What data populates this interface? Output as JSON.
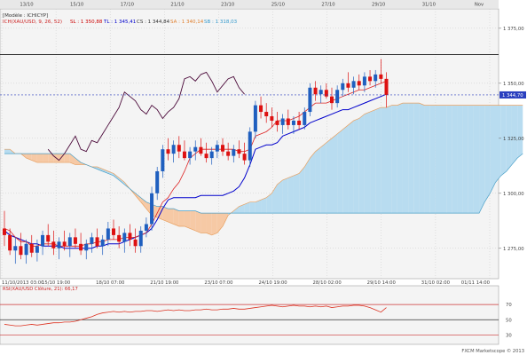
{
  "model_label": "[Modèle : ICHICYP]",
  "indicator_legend": {
    "ichimoku_label": "ICH(XAU/USD, 9, 26, 52)",
    "items": [
      {
        "label": "SL : 1 350,88",
        "color": "#cc0000"
      },
      {
        "label": "TL : 1 345,41",
        "color": "#0000cc"
      },
      {
        "label": "CS : 1 344,84",
        "color": "#333333"
      },
      {
        "label": "SA : 1 340,14",
        "color": "#e08030"
      },
      {
        "label": "SB : 1 318,03",
        "color": "#3399cc"
      }
    ]
  },
  "rsi_label": "RSI(XAU/USD Clôture, 21): 66,17",
  "watermark": "FXCM Marketscope © 2013",
  "last_price_label": "1 344,70",
  "colors": {
    "bull": "#1f5fbf",
    "bear": "#dd1111",
    "tenkan": "#dd2222",
    "kijun": "#0000cc",
    "chikou": "#4b0a3a",
    "kumo_bull": "#b8dcf0",
    "kumo_bear": "#f6c9a5",
    "grid": "#c8c8c8",
    "background": "#f4f4f4",
    "rsi": "#dd3322"
  },
  "chart_data": [
    {
      "type": "candlestick",
      "instrument": "XAU/USD",
      "ylim": [
        1262,
        1383
      ],
      "y_ticks": [
        1275,
        1300,
        1325,
        1350,
        1375
      ],
      "y_tick_labels": [
        "1 275,00",
        "1 300,00",
        "1 325,00",
        "1 350,00",
        "1 375,00"
      ],
      "x_time_labels": [
        "11/10/2013 03:00",
        "15/10 19:00",
        "18/10 07:00",
        "21/10 19:00",
        "23/10 07:00",
        "24/10 19:00",
        "28/10 02:00",
        "29/10 14:00",
        "31/10 02:00",
        "01/11 14:00"
      ],
      "x_date_labels": [
        "13/10",
        "15/10",
        "17/10",
        "21/10",
        "23/10",
        "25/10",
        "27/10",
        "29/10",
        "31/10",
        "Nov"
      ],
      "horizontal_line": 1363,
      "last_price": 1344.7,
      "candles": [
        {
          "o": 1284,
          "h": 1292,
          "l": 1276,
          "c": 1281
        },
        {
          "o": 1281,
          "h": 1284,
          "l": 1272,
          "c": 1274
        },
        {
          "o": 1274,
          "h": 1280,
          "l": 1268,
          "c": 1276
        },
        {
          "o": 1276,
          "h": 1282,
          "l": 1270,
          "c": 1272
        },
        {
          "o": 1272,
          "h": 1279,
          "l": 1268,
          "c": 1277
        },
        {
          "o": 1277,
          "h": 1281,
          "l": 1271,
          "c": 1273
        },
        {
          "o": 1273,
          "h": 1279,
          "l": 1269,
          "c": 1276
        },
        {
          "o": 1276,
          "h": 1283,
          "l": 1272,
          "c": 1281
        },
        {
          "o": 1281,
          "h": 1286,
          "l": 1276,
          "c": 1278
        },
        {
          "o": 1278,
          "h": 1283,
          "l": 1272,
          "c": 1275
        },
        {
          "o": 1275,
          "h": 1280,
          "l": 1270,
          "c": 1278
        },
        {
          "o": 1278,
          "h": 1283,
          "l": 1274,
          "c": 1276
        },
        {
          "o": 1276,
          "h": 1282,
          "l": 1271,
          "c": 1280
        },
        {
          "o": 1280,
          "h": 1284,
          "l": 1275,
          "c": 1277
        },
        {
          "o": 1277,
          "h": 1282,
          "l": 1272,
          "c": 1274
        },
        {
          "o": 1274,
          "h": 1279,
          "l": 1270,
          "c": 1277
        },
        {
          "o": 1277,
          "h": 1282,
          "l": 1273,
          "c": 1280
        },
        {
          "o": 1280,
          "h": 1284,
          "l": 1275,
          "c": 1276
        },
        {
          "o": 1276,
          "h": 1281,
          "l": 1272,
          "c": 1279
        },
        {
          "o": 1279,
          "h": 1287,
          "l": 1276,
          "c": 1284
        },
        {
          "o": 1284,
          "h": 1288,
          "l": 1279,
          "c": 1281
        },
        {
          "o": 1281,
          "h": 1285,
          "l": 1275,
          "c": 1278
        },
        {
          "o": 1278,
          "h": 1284,
          "l": 1273,
          "c": 1282
        },
        {
          "o": 1282,
          "h": 1286,
          "l": 1276,
          "c": 1279
        },
        {
          "o": 1279,
          "h": 1284,
          "l": 1273,
          "c": 1276
        },
        {
          "o": 1276,
          "h": 1285,
          "l": 1273,
          "c": 1283
        },
        {
          "o": 1283,
          "h": 1289,
          "l": 1280,
          "c": 1286
        },
        {
          "o": 1286,
          "h": 1303,
          "l": 1283,
          "c": 1300
        },
        {
          "o": 1300,
          "h": 1312,
          "l": 1297,
          "c": 1310
        },
        {
          "o": 1310,
          "h": 1322,
          "l": 1307,
          "c": 1320
        },
        {
          "o": 1320,
          "h": 1325,
          "l": 1315,
          "c": 1318
        },
        {
          "o": 1318,
          "h": 1324,
          "l": 1314,
          "c": 1322
        },
        {
          "o": 1322,
          "h": 1326,
          "l": 1316,
          "c": 1319
        },
        {
          "o": 1319,
          "h": 1324,
          "l": 1315,
          "c": 1316
        },
        {
          "o": 1316,
          "h": 1321,
          "l": 1313,
          "c": 1319
        },
        {
          "o": 1319,
          "h": 1324,
          "l": 1315,
          "c": 1321
        },
        {
          "o": 1321,
          "h": 1325,
          "l": 1317,
          "c": 1318
        },
        {
          "o": 1318,
          "h": 1323,
          "l": 1314,
          "c": 1316
        },
        {
          "o": 1316,
          "h": 1321,
          "l": 1313,
          "c": 1319
        },
        {
          "o": 1319,
          "h": 1324,
          "l": 1316,
          "c": 1322
        },
        {
          "o": 1322,
          "h": 1325,
          "l": 1317,
          "c": 1319
        },
        {
          "o": 1319,
          "h": 1323,
          "l": 1315,
          "c": 1317
        },
        {
          "o": 1317,
          "h": 1322,
          "l": 1314,
          "c": 1320
        },
        {
          "o": 1320,
          "h": 1324,
          "l": 1316,
          "c": 1318
        },
        {
          "o": 1318,
          "h": 1323,
          "l": 1313,
          "c": 1315
        },
        {
          "o": 1315,
          "h": 1330,
          "l": 1312,
          "c": 1328
        },
        {
          "o": 1328,
          "h": 1342,
          "l": 1325,
          "c": 1340
        },
        {
          "o": 1340,
          "h": 1344,
          "l": 1334,
          "c": 1337
        },
        {
          "o": 1337,
          "h": 1341,
          "l": 1332,
          "c": 1335
        },
        {
          "o": 1335,
          "h": 1339,
          "l": 1330,
          "c": 1333
        },
        {
          "o": 1333,
          "h": 1337,
          "l": 1328,
          "c": 1331
        },
        {
          "o": 1331,
          "h": 1336,
          "l": 1327,
          "c": 1334
        },
        {
          "o": 1334,
          "h": 1338,
          "l": 1329,
          "c": 1331
        },
        {
          "o": 1331,
          "h": 1335,
          "l": 1327,
          "c": 1333
        },
        {
          "o": 1333,
          "h": 1337,
          "l": 1329,
          "c": 1331
        },
        {
          "o": 1331,
          "h": 1339,
          "l": 1329,
          "c": 1337
        },
        {
          "o": 1337,
          "h": 1350,
          "l": 1335,
          "c": 1348
        },
        {
          "o": 1348,
          "h": 1351,
          "l": 1342,
          "c": 1345
        },
        {
          "o": 1345,
          "h": 1349,
          "l": 1341,
          "c": 1347
        },
        {
          "o": 1347,
          "h": 1350,
          "l": 1343,
          "c": 1344
        },
        {
          "o": 1344,
          "h": 1348,
          "l": 1338,
          "c": 1341
        },
        {
          "o": 1341,
          "h": 1349,
          "l": 1339,
          "c": 1347
        },
        {
          "o": 1347,
          "h": 1352,
          "l": 1344,
          "c": 1350
        },
        {
          "o": 1350,
          "h": 1355,
          "l": 1346,
          "c": 1348
        },
        {
          "o": 1348,
          "h": 1353,
          "l": 1345,
          "c": 1351
        },
        {
          "o": 1351,
          "h": 1354,
          "l": 1347,
          "c": 1349
        },
        {
          "o": 1349,
          "h": 1355,
          "l": 1346,
          "c": 1353
        },
        {
          "o": 1353,
          "h": 1356,
          "l": 1349,
          "c": 1351
        },
        {
          "o": 1351,
          "h": 1356,
          "l": 1348,
          "c": 1354
        },
        {
          "o": 1354,
          "h": 1361,
          "l": 1350,
          "c": 1352
        },
        {
          "o": 1352,
          "h": 1355,
          "l": 1339,
          "c": 1344.7
        }
      ],
      "tenkan": [
        1284,
        1283,
        1280,
        1278,
        1278,
        1276,
        1276,
        1277,
        1277,
        1277,
        1276,
        1276,
        1276,
        1276,
        1276,
        1277,
        1277,
        1278,
        1278,
        1279,
        1279,
        1279,
        1280,
        1280,
        1280,
        1281,
        1282,
        1286,
        1291,
        1296,
        1298,
        1302,
        1305,
        1310,
        1316,
        1318,
        1320,
        1320,
        1320,
        1320,
        1320,
        1320,
        1320,
        1319,
        1319,
        1320,
        1326,
        1327,
        1328,
        1330,
        1333,
        1333,
        1333,
        1334,
        1335,
        1337,
        1339,
        1341,
        1341,
        1341,
        1342,
        1343,
        1344,
        1345,
        1346,
        1347,
        1347,
        1348,
        1349,
        1350,
        1351
      ],
      "kijun": [
        1283,
        1281,
        1280,
        1279,
        1278,
        1277,
        1277,
        1276,
        1276,
        1276,
        1276,
        1275,
        1275,
        1275,
        1275,
        1275,
        1275,
        1276,
        1276,
        1277,
        1277,
        1277,
        1278,
        1279,
        1280,
        1281,
        1282,
        1284,
        1288,
        1293,
        1297,
        1298,
        1298,
        1298,
        1298,
        1298,
        1299,
        1299,
        1299,
        1299,
        1299,
        1300,
        1301,
        1303,
        1307,
        1313,
        1320,
        1321,
        1322,
        1322,
        1323,
        1326,
        1327,
        1328,
        1329,
        1330,
        1332,
        1333,
        1334,
        1335,
        1336,
        1337,
        1338,
        1338,
        1339,
        1340,
        1341,
        1342,
        1343,
        1344,
        1345
      ],
      "chikou": [
        1320,
        1317,
        1315,
        1318,
        1322,
        1326,
        1320,
        1319,
        1324,
        1323,
        1327,
        1331,
        1335,
        1339,
        1346,
        1344,
        1342,
        1338,
        1336,
        1340,
        1338,
        1334,
        1337,
        1339,
        1343,
        1352,
        1353,
        1351,
        1354,
        1355,
        1351,
        1346,
        1349,
        1352,
        1353,
        1348,
        1345
      ],
      "span_a": [
        1320,
        1320,
        1318,
        1318,
        1316,
        1315,
        1314,
        1314,
        1314,
        1314,
        1314,
        1314,
        1314,
        1313,
        1313,
        1313,
        1312,
        1312,
        1311,
        1310,
        1309,
        1307,
        1305,
        1302,
        1299,
        1296,
        1293,
        1290,
        1289,
        1288,
        1287,
        1286,
        1285,
        1285,
        1284,
        1283,
        1282,
        1282,
        1281,
        1282,
        1285,
        1290,
        1292,
        1294,
        1295,
        1296,
        1296,
        1297,
        1298,
        1300,
        1304,
        1306,
        1307,
        1308,
        1309,
        1312,
        1316,
        1319,
        1321,
        1323,
        1325,
        1327,
        1329,
        1331,
        1333,
        1334,
        1336,
        1337,
        1338,
        1339,
        1339,
        1340,
        1340,
        1341,
        1341,
        1341,
        1341,
        1340,
        1340,
        1340,
        1340,
        1340,
        1340,
        1340,
        1340,
        1340,
        1340,
        1340,
        1340,
        1340,
        1340,
        1340,
        1340,
        1340,
        1340,
        1340
      ],
      "span_b": [
        1318,
        1318,
        1318,
        1318,
        1318,
        1318,
        1318,
        1318,
        1318,
        1318,
        1318,
        1318,
        1318,
        1316,
        1314,
        1313,
        1312,
        1311,
        1310,
        1309,
        1308,
        1306,
        1304,
        1302,
        1300,
        1298,
        1296,
        1295,
        1294,
        1294,
        1293,
        1293,
        1292,
        1292,
        1292,
        1292,
        1291,
        1291,
        1291,
        1291,
        1291,
        1291,
        1291,
        1291,
        1291,
        1291,
        1291,
        1291,
        1291,
        1291,
        1291,
        1291,
        1291,
        1291,
        1291,
        1291,
        1291,
        1291,
        1291,
        1291,
        1291,
        1291,
        1291,
        1291,
        1291,
        1291,
        1291,
        1291,
        1291,
        1291,
        1291,
        1291,
        1291,
        1291,
        1291,
        1291,
        1291,
        1291,
        1291,
        1291,
        1291,
        1291,
        1291,
        1291,
        1291,
        1291,
        1291,
        1291,
        1296,
        1300,
        1305,
        1308,
        1310,
        1313,
        1316,
        1318
      ]
    },
    {
      "type": "line",
      "label": "RSI(XAU/USD Clôture, 21)",
      "ylim": [
        20,
        90
      ],
      "y_ticks": [
        70,
        50,
        30
      ],
      "y_tick_labels": [
        "70",
        "50",
        "30"
      ],
      "last_value": 66.17,
      "values": [
        44,
        43,
        42,
        42,
        43,
        44,
        43,
        44,
        45,
        46,
        46,
        47,
        47,
        48,
        50,
        52,
        54,
        57,
        59,
        60,
        61,
        60,
        61,
        60,
        61,
        61,
        62,
        62,
        61,
        62,
        63,
        62,
        63,
        62,
        62,
        63,
        63,
        64,
        63,
        63,
        64,
        64,
        65,
        64,
        64,
        65,
        66,
        67,
        68,
        69,
        68,
        67,
        68,
        69,
        68,
        68,
        67,
        68,
        67,
        68,
        66,
        67,
        68,
        68,
        69,
        69,
        68,
        66,
        63,
        60,
        66
      ]
    }
  ]
}
